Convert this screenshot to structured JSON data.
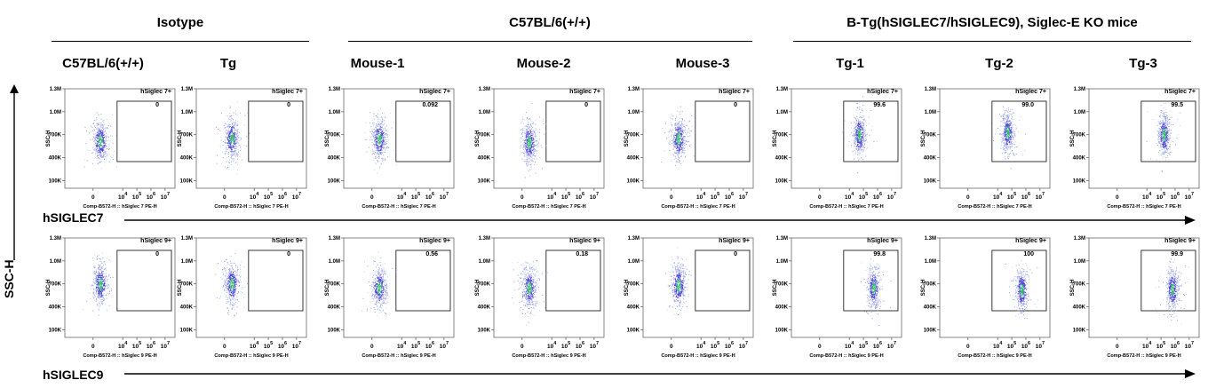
{
  "group_titles": [
    "Isotype",
    "C57BL/6(+/+)",
    "B-Tg(hSIGLEC7/hSIGLEC9), Siglec-E KO mice"
  ],
  "column_titles": [
    "C57BL/6(+/+)",
    "Tg",
    "Mouse-1",
    "Mouse-2",
    "Mouse-3",
    "Tg-1",
    "Tg-2",
    "Tg-3"
  ],
  "row_labels": [
    "hSIGLEC7",
    "hSIGLEC9"
  ],
  "y_axis_label": "SSC-H",
  "chart_data": [
    {
      "type": "scatter",
      "row": "hSIGLEC7",
      "gate_label": "hSiglec 7+",
      "xlabel": "Comp-B572-H :: hSiglec 7 PE-H",
      "ylabel": "SSC-H",
      "x_ticks": [
        "0",
        "10^4",
        "10^5",
        "10^6",
        "10^7"
      ],
      "y_ticks": [
        "100K",
        "400K",
        "700K",
        "1.0M",
        "1.3M"
      ],
      "ylim": [
        0,
        1300000
      ],
      "panels": [
        {
          "column": "C57BL/6(+/+)",
          "gate_percent": "0",
          "population_center": {
            "x_log": 2.5,
            "y": 620000
          }
        },
        {
          "column": "Tg",
          "gate_percent": "0",
          "population_center": {
            "x_log": 2.5,
            "y": 650000
          }
        },
        {
          "column": "Mouse-1",
          "gate_percent": "0.092",
          "population_center": {
            "x_log": 2.5,
            "y": 650000
          }
        },
        {
          "column": "Mouse-2",
          "gate_percent": "0",
          "population_center": {
            "x_log": 2.5,
            "y": 600000
          }
        },
        {
          "column": "Mouse-3",
          "gate_percent": "0",
          "population_center": {
            "x_log": 2.5,
            "y": 650000
          }
        },
        {
          "column": "Tg-1",
          "gate_percent": "99.6",
          "population_center": {
            "x_log": 4.8,
            "y": 700000
          }
        },
        {
          "column": "Tg-2",
          "gate_percent": "99.0",
          "population_center": {
            "x_log": 4.8,
            "y": 730000
          }
        },
        {
          "column": "Tg-3",
          "gate_percent": "99.5",
          "population_center": {
            "x_log": 5.3,
            "y": 700000
          }
        }
      ]
    },
    {
      "type": "scatter",
      "row": "hSIGLEC9",
      "gate_label": "hSiglec 9+",
      "xlabel": "Comp-B572-H :: hSiglec 9 PE-H",
      "ylabel": "SSC-H",
      "x_ticks": [
        "0",
        "10^4",
        "10^5",
        "10^6",
        "10^7"
      ],
      "y_ticks": [
        "100K",
        "400K",
        "700K",
        "1.0M",
        "1.3M"
      ],
      "ylim": [
        0,
        1300000
      ],
      "panels": [
        {
          "column": "C57BL/6(+/+)",
          "gate_percent": "0",
          "population_center": {
            "x_log": 2.5,
            "y": 700000
          }
        },
        {
          "column": "Tg",
          "gate_percent": "0",
          "population_center": {
            "x_log": 2.5,
            "y": 700000
          }
        },
        {
          "column": "Mouse-1",
          "gate_percent": "0.56",
          "population_center": {
            "x_log": 2.5,
            "y": 650000
          }
        },
        {
          "column": "Mouse-2",
          "gate_percent": "0.18",
          "population_center": {
            "x_log": 2.5,
            "y": 650000
          }
        },
        {
          "column": "Mouse-3",
          "gate_percent": "0",
          "population_center": {
            "x_log": 2.5,
            "y": 680000
          }
        },
        {
          "column": "Tg-1",
          "gate_percent": "99.8",
          "population_center": {
            "x_log": 5.8,
            "y": 650000
          }
        },
        {
          "column": "Tg-2",
          "gate_percent": "100",
          "population_center": {
            "x_log": 5.8,
            "y": 620000
          }
        },
        {
          "column": "Tg-3",
          "gate_percent": "99.9",
          "population_center": {
            "x_log": 5.9,
            "y": 630000
          }
        }
      ]
    }
  ]
}
